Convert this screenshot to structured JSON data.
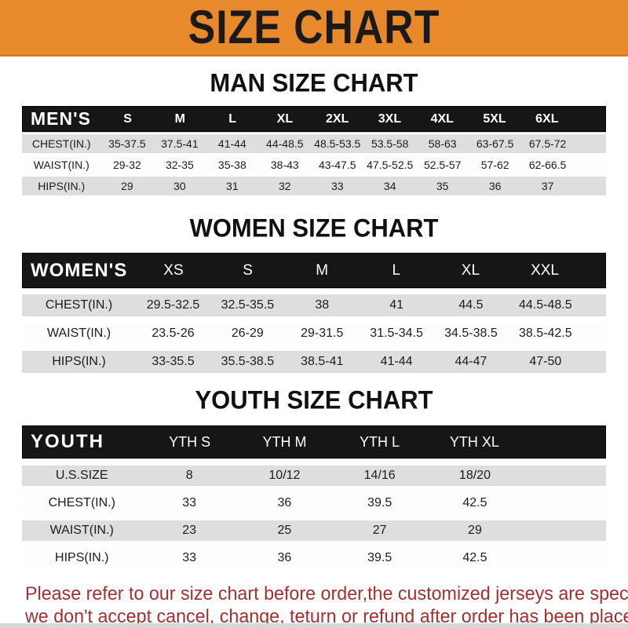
{
  "banner": {
    "title": "SIZE CHART",
    "bg_color": "#E88A2C",
    "text_color": "#1A1A1A"
  },
  "sections": [
    {
      "id": "men",
      "heading": "MAN SIZE CHART",
      "header_label": "MEN'S",
      "columns": [
        "S",
        "M",
        "L",
        "XL",
        "2XL",
        "3XL",
        "4XL",
        "5XL",
        "6XL"
      ],
      "rows": [
        {
          "label": "CHEST(IN.)",
          "values": [
            "35-37.5",
            "37.5-41",
            "41-44",
            "44-48.5",
            "48.5-53.5",
            "53.5-58",
            "58-63",
            "63-67.5",
            "67.5-72"
          ]
        },
        {
          "label": "WAIST(IN.)",
          "values": [
            "29-32",
            "32-35",
            "35-38",
            "38-43",
            "43-47.5",
            "47.5-52.5",
            "52.5-57",
            "57-62",
            "62-66.5"
          ]
        },
        {
          "label": "HIPS(IN.)",
          "values": [
            "29",
            "30",
            "31",
            "32",
            "33",
            "34",
            "35",
            "36",
            "37"
          ]
        }
      ]
    },
    {
      "id": "women",
      "heading": "WOMEN SIZE CHART",
      "header_label": "WOMEN'S",
      "columns": [
        "XS",
        "S",
        "M",
        "L",
        "XL",
        "XXL"
      ],
      "rows": [
        {
          "label": "CHEST(IN.)",
          "values": [
            "29.5-32.5",
            "32.5-35.5",
            "38",
            "41",
            "44.5",
            "44.5-48.5"
          ]
        },
        {
          "label": "WAIST(IN.)",
          "values": [
            "23.5-26",
            "26-29",
            "29-31.5",
            "31.5-34.5",
            "34.5-38.5",
            "38.5-42.5"
          ]
        },
        {
          "label": "HIPS(IN.)",
          "values": [
            "33-35.5",
            "35.5-38.5",
            "38.5-41",
            "41-44",
            "44-47",
            "47-50"
          ]
        }
      ]
    },
    {
      "id": "youth",
      "heading": "YOUTH SIZE CHART",
      "header_label": "YOUTH",
      "columns": [
        "YTH S",
        "YTH M",
        "YTH L",
        "YTH XL"
      ],
      "rows": [
        {
          "label": "U.S.SIZE",
          "values": [
            "8",
            "10/12",
            "14/16",
            "18/20"
          ]
        },
        {
          "label": "CHEST(IN.)",
          "values": [
            "33",
            "36",
            "39.5",
            "42.5"
          ]
        },
        {
          "label": "WAIST(IN.)",
          "values": [
            "23",
            "25",
            "27",
            "29"
          ]
        },
        {
          "label": "HIPS(IN.)",
          "values": [
            "33",
            "36",
            "39.5",
            "42.5"
          ]
        }
      ]
    }
  ],
  "footer": {
    "line1": "Please refer to our size chart before order,the customized jerseys are special products,",
    "line2": "we don't accept cancel, change, teturn or refund after order has been placed!",
    "text_color": "#A33030"
  },
  "colors": {
    "header_bar": "#161616",
    "band_gray": "#DEDEDE",
    "band_white": "#FDFDFD"
  }
}
